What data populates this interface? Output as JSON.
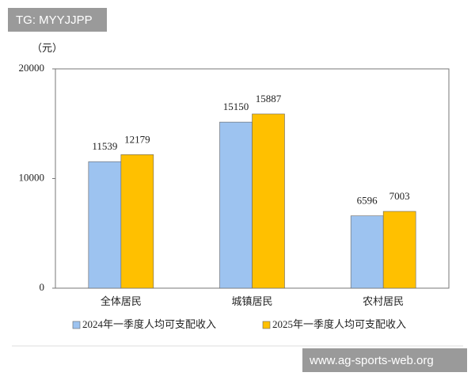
{
  "chart_data": {
    "type": "bar",
    "y_label": "（元）",
    "categories": [
      "全体居民",
      "城镇居民",
      "农村居民"
    ],
    "series": [
      {
        "name": "2024年一季度人均可支配收入",
        "color": "#9dc3f0",
        "values": [
          11539,
          15150,
          6596
        ]
      },
      {
        "name": "2025年一季度人均可支配收入",
        "color": "#ffc000",
        "values": [
          12179,
          15887,
          7003
        ]
      }
    ],
    "ylim": [
      0,
      20000
    ],
    "yticks": [
      0,
      10000,
      20000
    ],
    "grid": false,
    "legend": "bottom"
  },
  "watermarks": [
    "TG: MYYJJPP",
    "www.ag-sports-web.org"
  ]
}
